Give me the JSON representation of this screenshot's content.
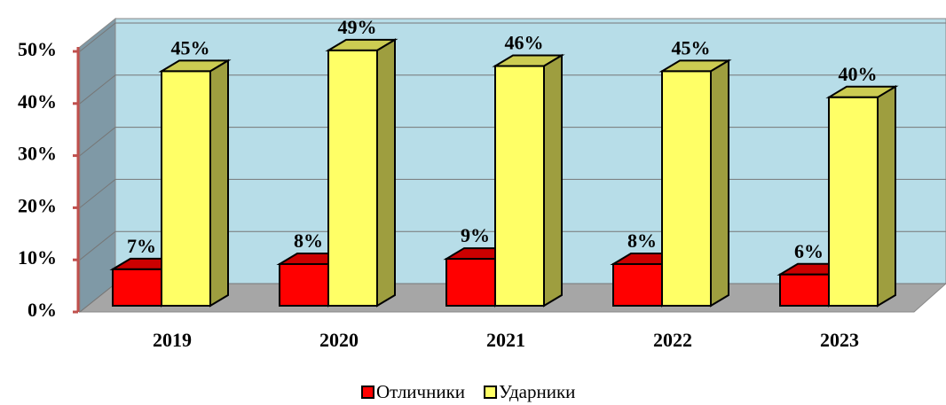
{
  "chart_data": {
    "type": "bar3d",
    "categories": [
      "2019",
      "2020",
      "2021",
      "2022",
      "2023"
    ],
    "series": [
      {
        "name": "Отличники",
        "color": "#ff0000",
        "values": [
          7,
          8,
          9,
          8,
          6
        ],
        "value_labels": [
          "7%",
          "8%",
          "9%",
          "8%",
          "6%"
        ]
      },
      {
        "name": "Ударники",
        "color": "#ffff66",
        "values": [
          45,
          49,
          46,
          45,
          40
        ],
        "value_labels": [
          "45%",
          "49%",
          "46%",
          "45%",
          "40%"
        ]
      }
    ],
    "ylim": [
      0,
      50
    ],
    "yticks": [
      {
        "value": 0,
        "label": "0%"
      },
      {
        "value": 10,
        "label": "10%"
      },
      {
        "value": 20,
        "label": "20%"
      },
      {
        "value": 30,
        "label": "30%"
      },
      {
        "value": 40,
        "label": "40%"
      },
      {
        "value": 50,
        "label": "50%"
      }
    ],
    "grid": true,
    "legend": "bottom"
  }
}
